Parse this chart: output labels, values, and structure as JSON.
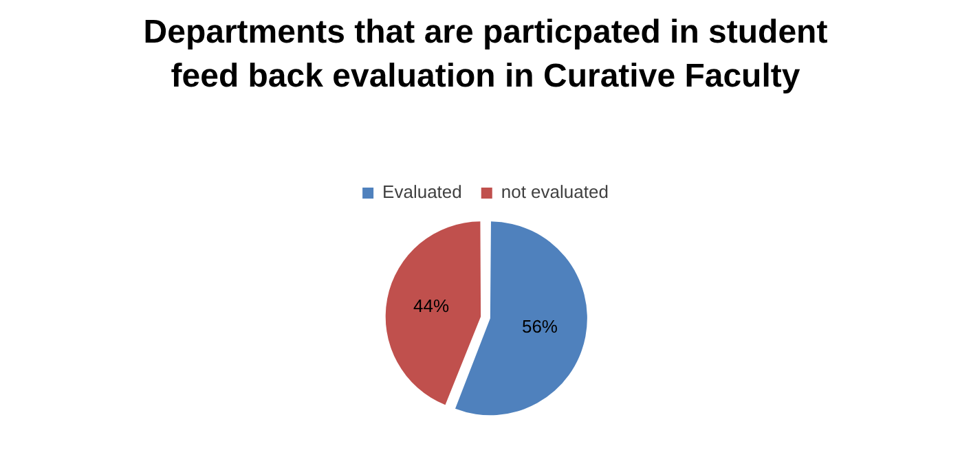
{
  "chart_data": {
    "type": "pie",
    "title": "Departments that are particpated in student feed back evaluation in  Curative Faculty",
    "categories": [
      "Evaluated",
      "not evaluated"
    ],
    "values": [
      56,
      44
    ],
    "colors": [
      "#4f81bd",
      "#c0504d"
    ],
    "value_labels": [
      "56%",
      "44%"
    ],
    "legend": "top"
  }
}
